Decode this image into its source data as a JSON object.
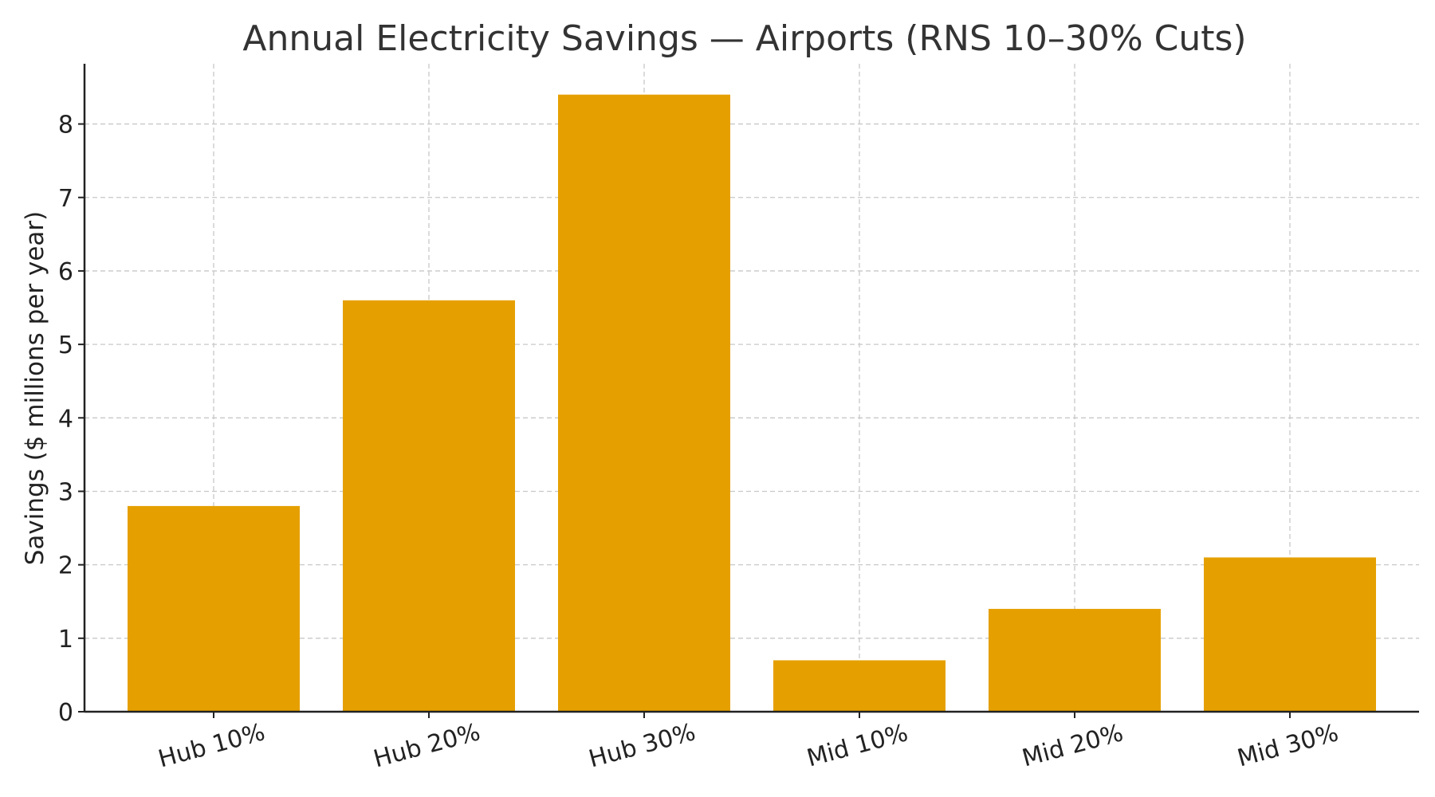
{
  "chart_data": {
    "type": "bar",
    "title": "Annual Electricity Savings — Airports (RNS 10–30% Cuts)",
    "xlabel": "",
    "ylabel": "Savings ($ millions per year)",
    "categories": [
      "Hub 10%",
      "Hub 20%",
      "Hub 30%",
      "Mid 10%",
      "Mid 20%",
      "Mid 30%"
    ],
    "values": [
      2.8,
      5.6,
      8.4,
      0.7,
      1.4,
      2.1
    ],
    "yticks": [
      0,
      1,
      2,
      3,
      4,
      5,
      6,
      7,
      8
    ],
    "ylim": [
      0,
      8.82
    ],
    "grid": true,
    "bar_color": "#E5A000",
    "x_tick_rotation_deg": -15
  }
}
